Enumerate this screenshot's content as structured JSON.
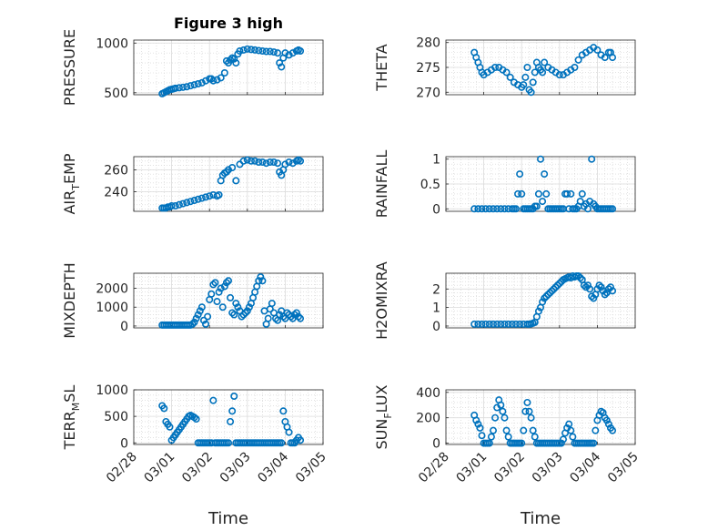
{
  "figure": {
    "title": "Figure 3 high"
  },
  "x_axis": {
    "label": "Time",
    "ticks": [
      "02/28",
      "03/01",
      "03/02",
      "03/03",
      "03/04",
      "03/05"
    ],
    "tick_values": [
      0,
      1,
      2,
      3,
      4,
      5
    ]
  },
  "chart_data": [
    {
      "type": "scatter",
      "ylabel": "PRESSURE",
      "ylim": [
        480,
        1030
      ],
      "yticks": [
        500,
        1000
      ],
      "xlim": [
        0,
        5
      ],
      "grid": true,
      "title": "Figure 3 high",
      "x": [
        0.75,
        0.8,
        0.85,
        0.9,
        0.95,
        1.0,
        1.05,
        1.1,
        1.2,
        1.3,
        1.4,
        1.5,
        1.6,
        1.7,
        1.8,
        1.9,
        2.0,
        2.05,
        2.1,
        2.2,
        2.3,
        2.4,
        2.45,
        2.5,
        2.55,
        2.6,
        2.65,
        2.7,
        2.75,
        2.8,
        2.9,
        3.0,
        3.1,
        3.2,
        3.3,
        3.4,
        3.5,
        3.6,
        3.7,
        3.8,
        3.85,
        3.9,
        3.95,
        4.0,
        4.1,
        4.2,
        4.3,
        4.35,
        4.4
      ],
      "y": [
        490,
        500,
        510,
        520,
        530,
        535,
        540,
        545,
        550,
        555,
        560,
        570,
        580,
        590,
        600,
        620,
        640,
        640,
        620,
        630,
        650,
        700,
        820,
        800,
        830,
        850,
        840,
        800,
        890,
        920,
        930,
        940,
        935,
        930,
        925,
        920,
        915,
        915,
        910,
        900,
        800,
        760,
        850,
        900,
        880,
        900,
        920,
        930,
        920
      ]
    },
    {
      "type": "scatter",
      "ylabel": "THETA",
      "ylim": [
        269.5,
        280.5
      ],
      "yticks": [
        270,
        275,
        280
      ],
      "xlim": [
        0,
        5
      ],
      "grid": true,
      "x": [
        0.75,
        0.8,
        0.85,
        0.9,
        0.95,
        1.0,
        1.1,
        1.2,
        1.3,
        1.4,
        1.5,
        1.6,
        1.7,
        1.8,
        1.9,
        2.0,
        2.05,
        2.1,
        2.15,
        2.2,
        2.25,
        2.3,
        2.35,
        2.4,
        2.45,
        2.5,
        2.55,
        2.6,
        2.7,
        2.8,
        2.9,
        3.0,
        3.1,
        3.2,
        3.3,
        3.4,
        3.5,
        3.6,
        3.7,
        3.8,
        3.9,
        4.0,
        4.1,
        4.2,
        4.3,
        4.35,
        4.4
      ],
      "y": [
        278,
        277,
        276,
        275,
        274,
        273.5,
        274,
        274.5,
        275,
        275,
        274.5,
        274,
        273,
        272,
        271.5,
        271,
        271.5,
        273,
        275,
        270.5,
        270,
        272,
        274,
        276,
        275,
        274.5,
        274,
        276,
        275,
        274.5,
        274,
        273.5,
        273.5,
        274,
        274.5,
        275,
        276.5,
        277.5,
        278,
        278.5,
        279,
        278.5,
        277.5,
        277,
        278,
        278,
        277
      ]
    },
    {
      "type": "scatter",
      "ylabel": "AIR_TEMP",
      "ylim": [
        222,
        272
      ],
      "yticks": [
        240,
        260
      ],
      "xlim": [
        0,
        5
      ],
      "grid": true,
      "x": [
        0.75,
        0.8,
        0.85,
        0.9,
        0.95,
        1.0,
        1.1,
        1.2,
        1.3,
        1.4,
        1.5,
        1.6,
        1.7,
        1.8,
        1.9,
        2.0,
        2.1,
        2.2,
        2.25,
        2.3,
        2.35,
        2.4,
        2.45,
        2.5,
        2.6,
        2.7,
        2.8,
        2.9,
        3.0,
        3.1,
        3.2,
        3.3,
        3.4,
        3.5,
        3.6,
        3.7,
        3.8,
        3.85,
        3.9,
        3.95,
        4.0,
        4.1,
        4.2,
        4.3,
        4.35,
        4.4
      ],
      "y": [
        225,
        225,
        225,
        226,
        226,
        227,
        227,
        228,
        229,
        230,
        231,
        232,
        233,
        234,
        235,
        236,
        237,
        236,
        237,
        250,
        255,
        257,
        258,
        260,
        262,
        250,
        265,
        268,
        269,
        268,
        268,
        267,
        267,
        266,
        267,
        267,
        266,
        258,
        255,
        260,
        265,
        267,
        266,
        268,
        269,
        268
      ]
    },
    {
      "type": "scatter",
      "ylabel": "RAINFALL",
      "ylim": [
        -0.05,
        1.05
      ],
      "yticks": [
        0,
        0.5,
        1
      ],
      "xlim": [
        0,
        5
      ],
      "grid": true,
      "x": [
        0.75,
        0.85,
        0.95,
        1.05,
        1.15,
        1.25,
        1.35,
        1.45,
        1.55,
        1.65,
        1.75,
        1.8,
        1.85,
        1.9,
        1.95,
        2.0,
        2.05,
        2.1,
        2.15,
        2.2,
        2.25,
        2.3,
        2.35,
        2.4,
        2.45,
        2.5,
        2.55,
        2.6,
        2.65,
        2.7,
        2.75,
        2.8,
        2.85,
        2.9,
        2.95,
        3.0,
        3.05,
        3.1,
        3.15,
        3.2,
        3.25,
        3.3,
        3.35,
        3.4,
        3.45,
        3.5,
        3.55,
        3.6,
        3.65,
        3.7,
        3.75,
        3.8,
        3.85,
        3.9,
        3.95,
        4.0,
        4.05,
        4.1,
        4.15,
        4.2,
        4.25,
        4.3,
        4.35,
        4.4
      ],
      "y": [
        0,
        0,
        0,
        0,
        0,
        0,
        0,
        0,
        0,
        0,
        0,
        0,
        0,
        0.3,
        0.7,
        0.3,
        0,
        0,
        0,
        0,
        0,
        0,
        0.05,
        0.05,
        0.3,
        1,
        0.15,
        0.7,
        0.3,
        0,
        0,
        0,
        0,
        0,
        0,
        0,
        0,
        0,
        0.3,
        0.3,
        0,
        0.3,
        0,
        0,
        0,
        0.05,
        0.15,
        0.3,
        0.05,
        0.1,
        0,
        0.15,
        1,
        0.1,
        0.05,
        0,
        0,
        0,
        0,
        0,
        0,
        0,
        0,
        0
      ]
    },
    {
      "type": "scatter",
      "ylabel": "MIXDEPTH",
      "ylim": [
        -100,
        2800
      ],
      "yticks": [
        0,
        1000,
        2000
      ],
      "xlim": [
        0,
        5
      ],
      "grid": true,
      "x": [
        0.75,
        0.8,
        0.85,
        0.9,
        0.95,
        1.0,
        1.05,
        1.1,
        1.15,
        1.2,
        1.25,
        1.3,
        1.35,
        1.4,
        1.45,
        1.5,
        1.55,
        1.6,
        1.65,
        1.7,
        1.75,
        1.8,
        1.85,
        1.9,
        1.95,
        2.0,
        2.05,
        2.1,
        2.15,
        2.2,
        2.25,
        2.3,
        2.35,
        2.4,
        2.45,
        2.5,
        2.55,
        2.6,
        2.65,
        2.7,
        2.75,
        2.8,
        2.85,
        2.9,
        2.95,
        3.0,
        3.05,
        3.1,
        3.15,
        3.2,
        3.25,
        3.3,
        3.35,
        3.4,
        3.45,
        3.5,
        3.55,
        3.6,
        3.65,
        3.7,
        3.75,
        3.8,
        3.85,
        3.9,
        3.95,
        4.0,
        4.05,
        4.1,
        4.15,
        4.2,
        4.25,
        4.3,
        4.35,
        4.4
      ],
      "y": [
        50,
        50,
        50,
        50,
        50,
        50,
        50,
        50,
        50,
        50,
        50,
        50,
        50,
        50,
        50,
        50,
        100,
        200,
        400,
        600,
        800,
        1000,
        300,
        100,
        500,
        1400,
        1700,
        2200,
        2300,
        1300,
        1800,
        2000,
        1000,
        2100,
        2300,
        2400,
        1500,
        700,
        600,
        1200,
        1000,
        800,
        500,
        600,
        700,
        800,
        1000,
        1200,
        1500,
        1800,
        2100,
        2400,
        2600,
        2400,
        800,
        100,
        400,
        900,
        1200,
        700,
        400,
        300,
        600,
        800,
        500,
        400,
        700,
        600,
        500,
        400,
        600,
        700,
        500,
        400
      ]
    },
    {
      "type": "scatter",
      "ylabel": "H2OMIXRA",
      "ylim": [
        -0.1,
        2.85
      ],
      "yticks": [
        0,
        1,
        2
      ],
      "xlim": [
        0,
        5
      ],
      "grid": true,
      "x": [
        0.75,
        0.85,
        0.95,
        1.05,
        1.15,
        1.25,
        1.35,
        1.45,
        1.55,
        1.65,
        1.75,
        1.85,
        1.95,
        2.05,
        2.15,
        2.2,
        2.25,
        2.3,
        2.35,
        2.4,
        2.45,
        2.5,
        2.55,
        2.6,
        2.65,
        2.7,
        2.75,
        2.8,
        2.85,
        2.9,
        2.95,
        3.0,
        3.05,
        3.1,
        3.15,
        3.2,
        3.25,
        3.3,
        3.35,
        3.4,
        3.45,
        3.5,
        3.55,
        3.6,
        3.65,
        3.7,
        3.75,
        3.8,
        3.85,
        3.9,
        3.95,
        4.0,
        4.05,
        4.1,
        4.15,
        4.2,
        4.25,
        4.3,
        4.35,
        4.4
      ],
      "y": [
        0.1,
        0.1,
        0.1,
        0.1,
        0.1,
        0.1,
        0.1,
        0.1,
        0.1,
        0.1,
        0.1,
        0.1,
        0.1,
        0.1,
        0.1,
        0.1,
        0.12,
        0.15,
        0.2,
        0.5,
        0.8,
        1.0,
        1.3,
        1.5,
        1.6,
        1.7,
        1.8,
        1.9,
        2.0,
        2.1,
        2.2,
        2.3,
        2.4,
        2.5,
        2.55,
        2.6,
        2.65,
        2.6,
        2.7,
        2.65,
        2.7,
        2.7,
        2.6,
        2.5,
        2.2,
        2.1,
        2.2,
        2.0,
        1.6,
        1.5,
        1.7,
        2.0,
        2.2,
        2.1,
        1.9,
        1.7,
        1.8,
        2.0,
        2.1,
        1.9
      ]
    },
    {
      "type": "scatter",
      "ylabel": "TERR_MSL",
      "ylim": [
        -30,
        1000
      ],
      "yticks": [
        0,
        500,
        1000
      ],
      "xlim": [
        0,
        5
      ],
      "grid": true,
      "x": [
        0.75,
        0.8,
        0.85,
        0.9,
        0.95,
        1.0,
        1.05,
        1.1,
        1.15,
        1.2,
        1.25,
        1.3,
        1.35,
        1.4,
        1.45,
        1.5,
        1.55,
        1.6,
        1.65,
        1.7,
        1.75,
        1.8,
        1.85,
        1.9,
        1.95,
        2.0,
        2.05,
        2.1,
        2.15,
        2.2,
        2.25,
        2.3,
        2.35,
        2.4,
        2.45,
        2.5,
        2.55,
        2.6,
        2.65,
        2.7,
        2.75,
        2.8,
        2.85,
        2.9,
        2.95,
        3.0,
        3.05,
        3.1,
        3.15,
        3.2,
        3.25,
        3.3,
        3.35,
        3.4,
        3.45,
        3.5,
        3.55,
        3.6,
        3.65,
        3.7,
        3.75,
        3.8,
        3.85,
        3.9,
        3.95,
        4.0,
        4.05,
        4.1,
        4.15,
        4.2,
        4.25,
        4.3,
        4.35,
        4.4
      ],
      "y": [
        700,
        650,
        400,
        350,
        300,
        50,
        100,
        150,
        200,
        250,
        300,
        350,
        400,
        450,
        500,
        520,
        500,
        480,
        450,
        0,
        0,
        0,
        0,
        0,
        0,
        0,
        0,
        800,
        0,
        0,
        0,
        0,
        0,
        0,
        0,
        0,
        400,
        600,
        880,
        0,
        0,
        0,
        0,
        0,
        0,
        0,
        0,
        0,
        0,
        0,
        0,
        0,
        0,
        0,
        0,
        0,
        0,
        0,
        0,
        0,
        0,
        0,
        0,
        0,
        600,
        400,
        300,
        200,
        0,
        0,
        0,
        50,
        100,
        50
      ]
    },
    {
      "type": "scatter",
      "ylabel": "SUN_FLUX",
      "ylim": [
        -10,
        420
      ],
      "yticks": [
        0,
        200,
        400
      ],
      "xlim": [
        0,
        5
      ],
      "grid": true,
      "x": [
        0.75,
        0.8,
        0.85,
        0.9,
        0.95,
        1.0,
        1.05,
        1.1,
        1.15,
        1.2,
        1.25,
        1.3,
        1.35,
        1.4,
        1.45,
        1.5,
        1.55,
        1.6,
        1.65,
        1.7,
        1.75,
        1.8,
        1.85,
        1.9,
        1.95,
        2.0,
        2.05,
        2.1,
        2.15,
        2.2,
        2.25,
        2.3,
        2.35,
        2.4,
        2.45,
        2.5,
        2.55,
        2.6,
        2.65,
        2.7,
        2.75,
        2.8,
        2.85,
        2.9,
        2.95,
        3.0,
        3.05,
        3.1,
        3.15,
        3.2,
        3.25,
        3.3,
        3.35,
        3.4,
        3.45,
        3.5,
        3.55,
        3.6,
        3.65,
        3.7,
        3.75,
        3.8,
        3.85,
        3.9,
        3.95,
        4.0,
        4.05,
        4.1,
        4.15,
        4.2,
        4.25,
        4.3,
        4.35,
        4.4
      ],
      "y": [
        220,
        180,
        150,
        120,
        60,
        0,
        0,
        0,
        0,
        50,
        100,
        200,
        280,
        340,
        300,
        250,
        200,
        100,
        50,
        0,
        0,
        0,
        0,
        0,
        0,
        0,
        100,
        250,
        320,
        250,
        200,
        100,
        50,
        0,
        0,
        0,
        0,
        0,
        0,
        0,
        0,
        0,
        0,
        0,
        0,
        0,
        0,
        30,
        80,
        120,
        150,
        100,
        50,
        0,
        0,
        0,
        0,
        0,
        0,
        0,
        0,
        0,
        0,
        0,
        100,
        180,
        220,
        250,
        240,
        200,
        180,
        150,
        120,
        100
      ]
    }
  ]
}
